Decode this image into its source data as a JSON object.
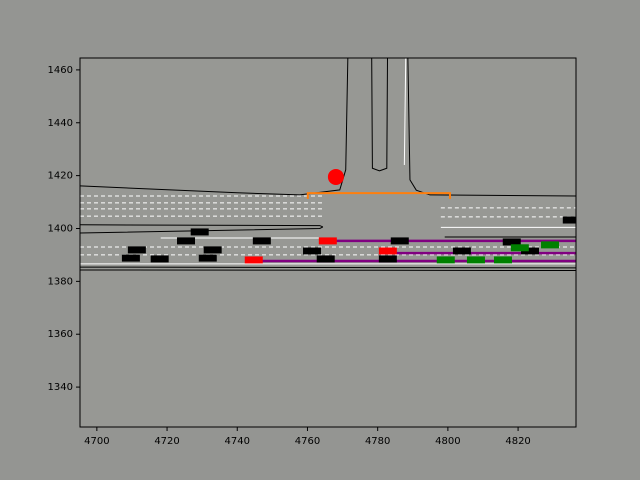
{
  "chart_data": {
    "type": "scene",
    "xlim": [
      4695.2,
      4836.5
    ],
    "ylim": [
      1324.9,
      1464.5
    ],
    "xticks": [
      4700,
      4720,
      4740,
      4760,
      4780,
      4800,
      4820
    ],
    "yticks": [
      1340,
      1360,
      1380,
      1400,
      1420,
      1440,
      1460
    ],
    "background": "#979894",
    "lines": [
      {
        "color": "#000000",
        "dashed": false,
        "x": [
          4695.2,
          4740.0,
          4757.8,
          4769.2,
          4770.9,
          4771.5
        ],
        "y": [
          1416.1,
          1413.5,
          1412.7,
          1414.6,
          1422.2,
          1464.5
        ]
      },
      {
        "color": "#000000",
        "dashed": false,
        "x": [
          4778.3,
          4778.5,
          4780.5,
          4782.6,
          4782.8
        ],
        "y": [
          1464.5,
          1422.8,
          1421.8,
          1422.8,
          1464.5
        ]
      },
      {
        "color": "#000000",
        "dashed": false,
        "x": [
          4788.6,
          4789.2,
          4791.0,
          4794.9,
          4836.5
        ],
        "y": [
          1464.5,
          1418.4,
          1414.5,
          1412.7,
          1412.3
        ]
      },
      {
        "color": "#ffffff",
        "dashed": false,
        "x": [
          4788.0,
          4787.6
        ],
        "y": [
          1464.5,
          1424.0
        ]
      },
      {
        "color": "#000000",
        "dashed": false,
        "x": [
          4695.2,
          4763.5,
          4764.4
        ],
        "y": [
          1401.4,
          1401.1,
          1400.6
        ]
      },
      {
        "color": "#000000",
        "dashed": false,
        "x": [
          4695.2,
          4763.5,
          4764.4
        ],
        "y": [
          1398.3,
          1400.0,
          1400.6
        ]
      },
      {
        "color": "#000000",
        "dashed": false,
        "x": [
          4695.2,
          4836.5
        ],
        "y": [
          1385.4,
          1385.1
        ]
      },
      {
        "color": "#000000",
        "dashed": false,
        "x": [
          4695.2,
          4836.5
        ],
        "y": [
          1384.3,
          1384.1
        ]
      },
      {
        "color": "#000000",
        "dashed": false,
        "x": [
          4799.1,
          4836.5
        ],
        "y": [
          1396.8,
          1396.8
        ]
      },
      {
        "color": "#ffffff",
        "dashed": true,
        "x": [
          4695.2,
          4764.4
        ],
        "y": [
          1412.3,
          1412.3
        ]
      },
      {
        "color": "#ffffff",
        "dashed": true,
        "x": [
          4695.2,
          4764.4
        ],
        "y": [
          1409.7,
          1409.7
        ]
      },
      {
        "color": "#ffffff",
        "dashed": true,
        "x": [
          4695.2,
          4764.4
        ],
        "y": [
          1407.4,
          1407.4
        ]
      },
      {
        "color": "#ffffff",
        "dashed": true,
        "x": [
          4695.2,
          4764.4
        ],
        "y": [
          1404.7,
          1404.7
        ]
      },
      {
        "color": "#ffffff",
        "dashed": true,
        "x": [
          4798.0,
          4836.5
        ],
        "y": [
          1407.8,
          1407.8
        ]
      },
      {
        "color": "#ffffff",
        "dashed": true,
        "x": [
          4798.0,
          4836.5
        ],
        "y": [
          1404.4,
          1404.4
        ]
      },
      {
        "color": "#ffffff",
        "dashed": false,
        "x": [
          4798.0,
          4836.5
        ],
        "y": [
          1400.4,
          1400.4
        ]
      },
      {
        "color": "#ffffff",
        "dashed": true,
        "x": [
          4695.2,
          4836.5
        ],
        "y": [
          1393.0,
          1393.0
        ]
      },
      {
        "color": "#ffffff",
        "dashed": true,
        "x": [
          4695.2,
          4836.5
        ],
        "y": [
          1390.0,
          1390.0
        ]
      },
      {
        "color": "#ffffff",
        "dashed": false,
        "x": [
          4718.2,
          4764.4
        ],
        "y": [
          1396.4,
          1396.4
        ]
      },
      {
        "color": "#ffffff",
        "dashed": false,
        "x": [
          4695.2,
          4836.5
        ],
        "y": [
          1386.6,
          1386.6
        ]
      },
      {
        "color": "#800080",
        "dashed": false,
        "x": [
          4763.5,
          4836.5
        ],
        "y": [
          1395.3,
          1395.3
        ]
      },
      {
        "color": "#800080",
        "dashed": false,
        "x": [
          4743.6,
          4836.5
        ],
        "y": [
          1387.7,
          1387.7
        ]
      },
      {
        "color": "#800080",
        "dashed": false,
        "x": [
          4780.6,
          4836.5
        ],
        "y": [
          1390.7,
          1390.7
        ]
      },
      {
        "color": "#ff7f0e",
        "dashed": false,
        "x": [
          4760.1,
          4760.1,
          4800.6,
          4800.6
        ],
        "y": [
          1411.2,
          1413.4,
          1413.4,
          1411.2
        ]
      }
    ],
    "vehicles": [
      {
        "x": 4729.3,
        "y": 1398.7,
        "color": "#000000"
      },
      {
        "x": 4725.4,
        "y": 1395.3,
        "color": "#000000"
      },
      {
        "x": 4711.4,
        "y": 1391.9,
        "color": "#000000"
      },
      {
        "x": 4733.0,
        "y": 1391.9,
        "color": "#000000"
      },
      {
        "x": 4747.0,
        "y": 1395.3,
        "color": "#000000"
      },
      {
        "x": 4709.7,
        "y": 1388.8,
        "color": "#000000"
      },
      {
        "x": 4717.9,
        "y": 1388.5,
        "color": "#000000"
      },
      {
        "x": 4731.6,
        "y": 1388.8,
        "color": "#000000"
      },
      {
        "x": 4761.3,
        "y": 1391.5,
        "color": "#000000"
      },
      {
        "x": 4786.3,
        "y": 1395.3,
        "color": "#000000"
      },
      {
        "x": 4804.0,
        "y": 1391.5,
        "color": "#000000"
      },
      {
        "x": 4818.2,
        "y": 1394.9,
        "color": "#000000"
      },
      {
        "x": 4823.4,
        "y": 1391.5,
        "color": "#000000"
      },
      {
        "x": 4835.3,
        "y": 1403.2,
        "color": "#000000"
      },
      {
        "x": 4782.9,
        "y": 1388.5,
        "color": "#000000"
      },
      {
        "x": 4765.2,
        "y": 1388.5,
        "color": "#000000"
      },
      {
        "x": 4765.8,
        "y": 1395.3,
        "color": "#ff0000"
      },
      {
        "x": 4744.7,
        "y": 1388.1,
        "color": "#ff0000"
      },
      {
        "x": 4782.9,
        "y": 1391.5,
        "color": "#ff0000"
      },
      {
        "x": 4799.4,
        "y": 1388.1,
        "color": "#008000"
      },
      {
        "x": 4808.0,
        "y": 1388.1,
        "color": "#008000"
      },
      {
        "x": 4815.7,
        "y": 1388.1,
        "color": "#008000"
      },
      {
        "x": 4829.1,
        "y": 1393.8,
        "color": "#008000"
      },
      {
        "x": 4820.5,
        "y": 1392.7,
        "color": "#008000"
      }
    ],
    "points": [
      {
        "x": 4768.1,
        "y": 1419.5,
        "color": "#ff0000"
      }
    ]
  }
}
